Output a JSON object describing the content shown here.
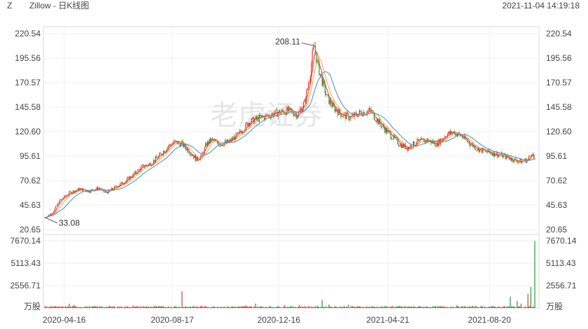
{
  "header": {
    "symbol": "Z",
    "name": "Zillow - 日K线图",
    "datetime": "2021-11-04 14:19:18"
  },
  "watermark": "老虎证券",
  "colors": {
    "up": "#e8372c",
    "down": "#1e9b3c",
    "ma_short": "#e8372c",
    "ma_mid": "#f0a64a",
    "ma_long": "#3d8fd4"
  },
  "chart_data": {
    "type": "candlestick",
    "price_axis": {
      "ticks": [
        "220.54",
        "195.56",
        "170.57",
        "145.58",
        "120.60",
        "95.61",
        "70.62",
        "45.63",
        "20.65"
      ],
      "range": [
        20.65,
        220.54
      ]
    },
    "volume_axis": {
      "ticks": [
        "7670.14",
        "5113.43",
        "2556.71"
      ],
      "unit": "万股",
      "range": [
        0,
        7670.14
      ]
    },
    "x_ticks": [
      "2020-04-16",
      "2020-08-17",
      "2020-12-16",
      "2021-04-21",
      "2021-08-20"
    ],
    "annotations": {
      "max": "208.11",
      "min": "33.08"
    },
    "price_path": [
      [
        0,
        33
      ],
      [
        8,
        38
      ],
      [
        15,
        50
      ],
      [
        25,
        58
      ],
      [
        35,
        62
      ],
      [
        45,
        60
      ],
      [
        55,
        63
      ],
      [
        62,
        58
      ],
      [
        72,
        64
      ],
      [
        82,
        70
      ],
      [
        92,
        78
      ],
      [
        100,
        85
      ],
      [
        108,
        88
      ],
      [
        116,
        95
      ],
      [
        125,
        105
      ],
      [
        132,
        110
      ],
      [
        140,
        108
      ],
      [
        148,
        100
      ],
      [
        155,
        92
      ],
      [
        160,
        96
      ],
      [
        165,
        108
      ],
      [
        170,
        112
      ],
      [
        178,
        108
      ],
      [
        188,
        110
      ],
      [
        198,
        118
      ],
      [
        208,
        130
      ],
      [
        218,
        134
      ],
      [
        228,
        137
      ],
      [
        238,
        140
      ],
      [
        248,
        142
      ],
      [
        258,
        138
      ],
      [
        265,
        150
      ],
      [
        270,
        175
      ],
      [
        273,
        198
      ],
      [
        275,
        208
      ],
      [
        278,
        190
      ],
      [
        283,
        172
      ],
      [
        288,
        155
      ],
      [
        295,
        145
      ],
      [
        303,
        138
      ],
      [
        312,
        135
      ],
      [
        322,
        140
      ],
      [
        332,
        142
      ],
      [
        340,
        131
      ],
      [
        348,
        122
      ],
      [
        355,
        115
      ],
      [
        362,
        108
      ],
      [
        370,
        104
      ],
      [
        380,
        110
      ],
      [
        390,
        112
      ],
      [
        400,
        108
      ],
      [
        410,
        118
      ],
      [
        418,
        120
      ],
      [
        425,
        116
      ],
      [
        432,
        110
      ],
      [
        440,
        104
      ],
      [
        450,
        100
      ],
      [
        460,
        98
      ],
      [
        470,
        95
      ],
      [
        478,
        92
      ],
      [
        486,
        90
      ],
      [
        493,
        92
      ],
      [
        497,
        100
      ],
      [
        500,
        90
      ]
    ],
    "volume_spikes": [
      {
        "t": 0,
        "v": 200
      },
      {
        "t": 25,
        "v": 500
      },
      {
        "t": 30,
        "v": 350
      },
      {
        "t": 50,
        "v": 200
      },
      {
        "t": 90,
        "v": 300
      },
      {
        "t": 100,
        "v": 180
      },
      {
        "t": 112,
        "v": 220
      },
      {
        "t": 140,
        "v": 1900
      },
      {
        "t": 160,
        "v": 250
      },
      {
        "t": 205,
        "v": 300
      },
      {
        "t": 215,
        "v": 500
      },
      {
        "t": 245,
        "v": 300
      },
      {
        "t": 260,
        "v": 350
      },
      {
        "t": 283,
        "v": 900
      },
      {
        "t": 290,
        "v": 400
      },
      {
        "t": 310,
        "v": 380
      },
      {
        "t": 355,
        "v": 250
      },
      {
        "t": 420,
        "v": 300
      },
      {
        "t": 440,
        "v": 220
      },
      {
        "t": 475,
        "v": 1300
      },
      {
        "t": 482,
        "v": 800
      },
      {
        "t": 486,
        "v": 500
      },
      {
        "t": 493,
        "v": 1600
      },
      {
        "t": 496,
        "v": 2400
      },
      {
        "t": 500,
        "v": 7670
      }
    ]
  }
}
